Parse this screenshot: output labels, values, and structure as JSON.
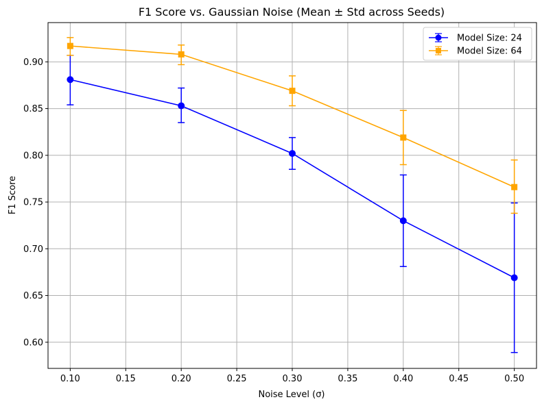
{
  "chart_data": {
    "type": "line",
    "title": "F1 Score vs. Gaussian Noise (Mean ± Std across Seeds)",
    "xlabel": "Noise Level (σ)",
    "ylabel": "F1 Score",
    "xlim": [
      0.08,
      0.52
    ],
    "ylim": [
      0.572,
      0.942
    ],
    "x": [
      0.1,
      0.2,
      0.3,
      0.4,
      0.5
    ],
    "xticks": [
      "0.10",
      "0.15",
      "0.20",
      "0.25",
      "0.30",
      "0.35",
      "0.40",
      "0.45",
      "0.50"
    ],
    "yticks": [
      "0.60",
      "0.65",
      "0.70",
      "0.75",
      "0.80",
      "0.85",
      "0.90"
    ],
    "grid": true,
    "legend_position": "top-right",
    "series": [
      {
        "name": "Model Size: 24",
        "color": "#0000ff",
        "marker": "circle",
        "values": [
          0.881,
          0.853,
          0.802,
          0.73,
          0.669
        ],
        "err_low": [
          0.854,
          0.835,
          0.785,
          0.681,
          0.589
        ],
        "err_high": [
          0.907,
          0.872,
          0.819,
          0.779,
          0.749
        ]
      },
      {
        "name": "Model Size: 64",
        "color": "#ffa500",
        "marker": "square",
        "values": [
          0.917,
          0.908,
          0.869,
          0.819,
          0.766
        ],
        "err_low": [
          0.907,
          0.897,
          0.853,
          0.79,
          0.738
        ],
        "err_high": [
          0.926,
          0.918,
          0.885,
          0.848,
          0.795
        ]
      }
    ]
  }
}
